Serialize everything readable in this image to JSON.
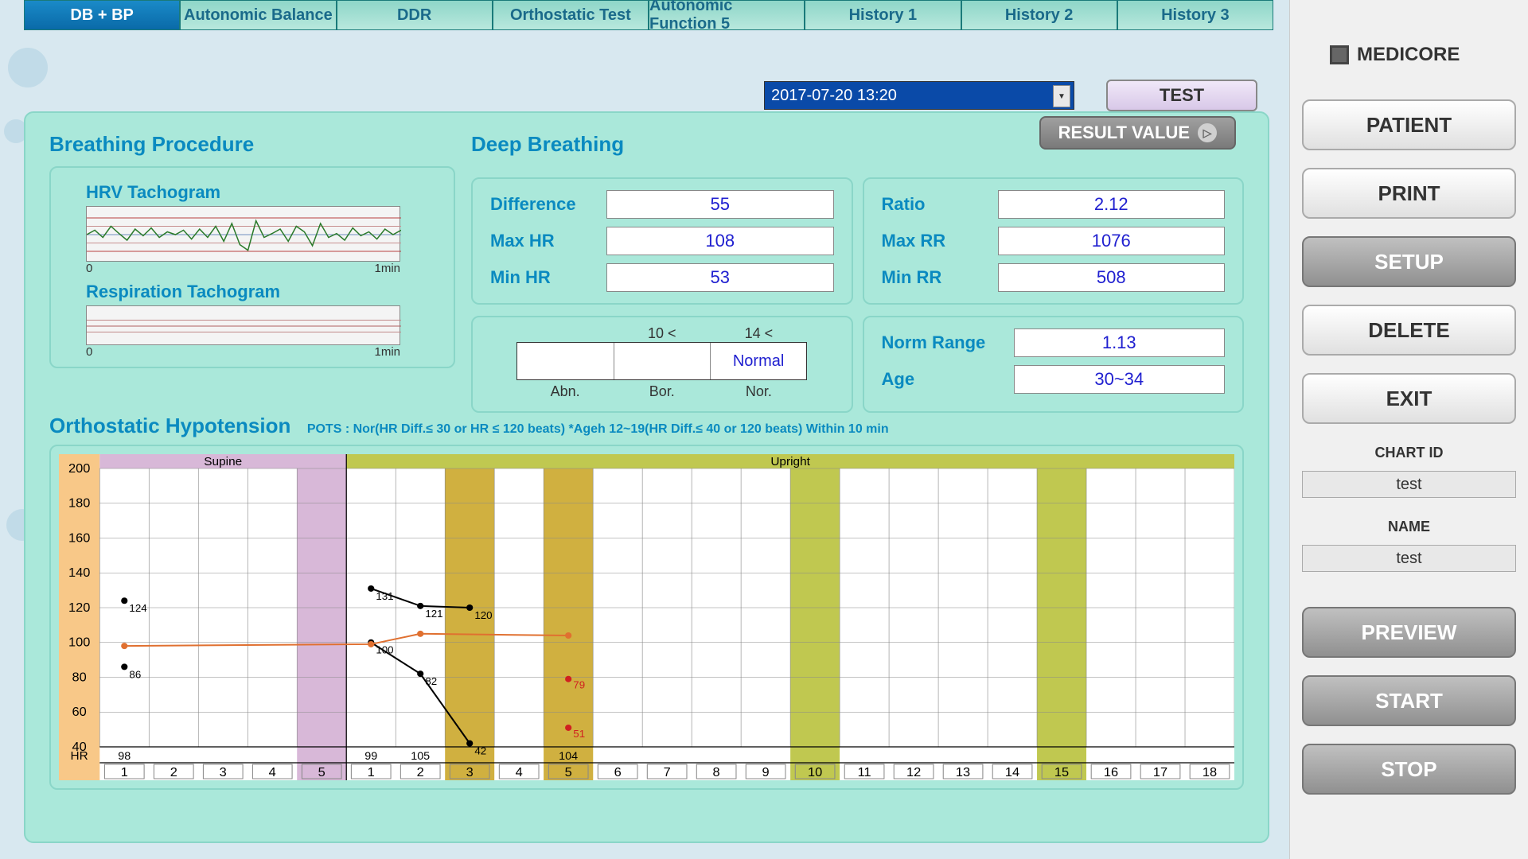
{
  "tabs": [
    "DB + BP",
    "Autonomic Balance",
    "DDR",
    "Orthostatic Test",
    "Autonomic Function 5",
    "History 1",
    "History 2",
    "History 3"
  ],
  "active_tab_index": 0,
  "date_value": "2017-07-20 13:20",
  "test_button": "TEST",
  "result_value_button": "RESULT VALUE",
  "breathing": {
    "title": "Breathing Procedure",
    "hrv_label": "HRV Tachogram",
    "resp_label": "Respiration Tachogram",
    "xaxis_start": "0",
    "xaxis_end": "1min",
    "hrv_chart": {
      "bg": "#f4f4f4",
      "gridlines_y": [
        0.2,
        0.35,
        0.5,
        0.65,
        0.8
      ],
      "gridline_colors": [
        "#b84040",
        "#c89090",
        "#7090c0",
        "#c89090",
        "#b84040"
      ],
      "line_color": "#2a7a2a",
      "points": [
        0.5,
        0.42,
        0.55,
        0.35,
        0.48,
        0.6,
        0.4,
        0.52,
        0.38,
        0.55,
        0.45,
        0.5,
        0.42,
        0.58,
        0.4,
        0.55,
        0.35,
        0.62,
        0.3,
        0.68,
        0.78,
        0.25,
        0.55,
        0.48,
        0.4,
        0.62,
        0.35,
        0.45,
        0.7,
        0.3,
        0.55,
        0.48,
        0.6,
        0.38,
        0.52,
        0.45,
        0.58,
        0.4,
        0.5,
        0.42
      ]
    },
    "resp_chart": {
      "bg": "#e8e8e8",
      "gridlines_y": [
        0.35,
        0.5,
        0.65
      ],
      "gridline_colors": [
        "#c08888",
        "#b06060",
        "#c08888"
      ]
    }
  },
  "deep_breathing": {
    "title": "Deep Breathing",
    "left": [
      {
        "label": "Difference",
        "value": "55"
      },
      {
        "label": "Max HR",
        "value": "108"
      },
      {
        "label": "Min HR",
        "value": "53"
      }
    ],
    "right": [
      {
        "label": "Ratio",
        "value": "2.12"
      },
      {
        "label": "Max RR",
        "value": "1076"
      },
      {
        "label": "Min RR",
        "value": "508"
      }
    ],
    "range_top": [
      "",
      "10 <",
      "14 <"
    ],
    "range_cells": [
      "",
      "",
      "Normal"
    ],
    "range_bottom": [
      "Abn.",
      "Bor.",
      "Nor."
    ],
    "norm": [
      {
        "label": "Norm Range",
        "value": "1.13"
      },
      {
        "label": "Age",
        "value": "30~34"
      }
    ]
  },
  "ortho": {
    "title": "Orthostatic Hypotension",
    "note": "POTS : Nor(HR Diff.≤ 30 or HR ≤ 120 beats) *Ageh 12~19(HR Diff.≤ 40 or 120 beats) Within 10 min",
    "y_ticks": [
      200,
      180,
      160,
      140,
      120,
      100,
      80,
      60,
      40
    ],
    "y_label": "HR",
    "x_ticks_supine": [
      1,
      2,
      3,
      4,
      5
    ],
    "x_ticks_upright": [
      1,
      2,
      3,
      4,
      5,
      6,
      7,
      8,
      9,
      10,
      11,
      12,
      13,
      14,
      15,
      16,
      17,
      18
    ],
    "header_supine": "Supine",
    "header_upright": "Upright",
    "supine_color": "#d8b8d8",
    "upright_color": "#c0c850",
    "band_color_dark": "#d0b040",
    "bands_upright": [
      3,
      5,
      10,
      15
    ],
    "grid_color": "#888888",
    "axis_bg_left": "#f8c888",
    "black_line_color": "#000000",
    "orange_line_color": "#e07030",
    "red_point_color": "#d02020",
    "hr_row_values": {
      "supine_1": "98",
      "upright_1": "99",
      "upright_2": "105",
      "upright_5": "104"
    },
    "black_series_a": [
      {
        "x": "s1",
        "y": 124,
        "label": "124"
      },
      {
        "x": "u1",
        "y": 131,
        "label": "131"
      },
      {
        "x": "u2",
        "y": 121,
        "label": "121"
      },
      {
        "x": "u3",
        "y": 120,
        "label": "120"
      }
    ],
    "black_series_b": [
      {
        "x": "s1",
        "y": 86,
        "label": "86"
      },
      {
        "x": "u1",
        "y": 100,
        "label": "100"
      },
      {
        "x": "u2",
        "y": 82,
        "label": "82"
      },
      {
        "x": "u3",
        "y": 42,
        "label": "42"
      }
    ],
    "orange_series": [
      {
        "x": "s1",
        "y": 98
      },
      {
        "x": "u1",
        "y": 99
      },
      {
        "x": "u2",
        "y": 105
      },
      {
        "x": "u5",
        "y": 104
      }
    ],
    "red_points": [
      {
        "x": "u5",
        "y": 79,
        "label": "79"
      },
      {
        "x": "u5",
        "y": 51,
        "label": "51"
      }
    ]
  },
  "right_panel": {
    "brand": "MEDICORE",
    "buttons_top": [
      "PATIENT",
      "PRINT",
      "SETUP",
      "DELETE",
      "EXIT"
    ],
    "setup_grey_index": 2,
    "chart_id_label": "CHART ID",
    "chart_id_value": "test",
    "name_label": "NAME",
    "name_value": "test",
    "buttons_bottom": [
      "PREVIEW",
      "START",
      "STOP"
    ]
  }
}
